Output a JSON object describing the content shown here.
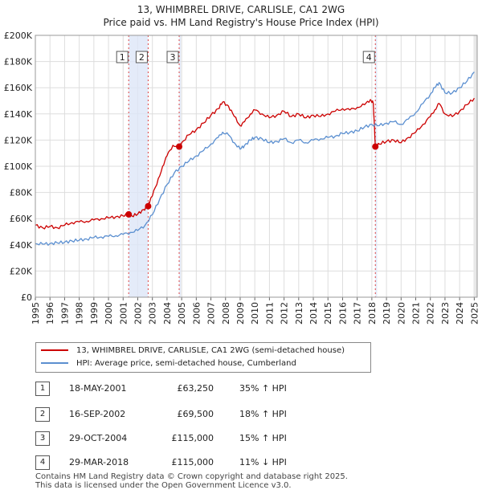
{
  "chart_data": {
    "type": "line",
    "title": "13, WHIMBREL DRIVE, CARLISLE, CA1 2WG",
    "subtitle": "Price paid vs. HM Land Registry's House Price Index (HPI)",
    "xlabel": "",
    "ylabel": "",
    "xlim": [
      1995,
      2025.2
    ],
    "ylim": [
      0,
      200000
    ],
    "y_ticks": [
      0,
      20000,
      40000,
      60000,
      80000,
      100000,
      120000,
      140000,
      160000,
      180000,
      200000
    ],
    "y_tick_labels": [
      "£0",
      "£20K",
      "£40K",
      "£60K",
      "£80K",
      "£100K",
      "£120K",
      "£140K",
      "£160K",
      "£180K",
      "£200K"
    ],
    "x_ticks": [
      1995,
      1996,
      1997,
      1998,
      1999,
      2000,
      2001,
      2002,
      2003,
      2004,
      2005,
      2006,
      2007,
      2008,
      2009,
      2010,
      2011,
      2012,
      2013,
      2014,
      2015,
      2016,
      2017,
      2018,
      2019,
      2020,
      2021,
      2022,
      2023,
      2024,
      2025
    ],
    "x_tick_labels": [
      "1995",
      "1996",
      "1997",
      "1998",
      "1999",
      "2000",
      "2001",
      "2002",
      "2003",
      "2004",
      "2005",
      "2006",
      "2007",
      "2008",
      "2009",
      "2010",
      "2011",
      "2012",
      "2013",
      "2014",
      "2015",
      "2016",
      "2017",
      "2018",
      "2019",
      "2020",
      "2021",
      "2022",
      "2023",
      "2024",
      "2025"
    ],
    "grid": true,
    "legend_position": "bottom",
    "series": [
      {
        "name": "13, WHIMBREL DRIVE, CARLISLE, CA1 2WG (semi-detached house)",
        "color": "#cc0000",
        "x": [
          1995.0,
          1995.5,
          1996.0,
          1996.5,
          1997.0,
          1997.5,
          1998.0,
          1998.5,
          1999.0,
          1999.5,
          2000.0,
          2000.5,
          2001.0,
          2001.38,
          2001.6,
          2002.0,
          2002.4,
          2002.71,
          2002.9,
          2003.3,
          2003.7,
          2004.0,
          2004.4,
          2004.83,
          2005.0,
          2005.5,
          2006.0,
          2006.5,
          2007.0,
          2007.5,
          2007.8,
          2008.2,
          2008.6,
          2009.0,
          2009.3,
          2009.7,
          2010.0,
          2010.5,
          2011.0,
          2011.5,
          2012.0,
          2012.5,
          2013.0,
          2013.5,
          2014.0,
          2014.5,
          2015.0,
          2015.5,
          2016.0,
          2016.5,
          2017.0,
          2017.5,
          2017.9,
          2018.1,
          2018.24,
          2018.5,
          2019.0,
          2019.5,
          2020.0,
          2020.5,
          2021.0,
          2021.5,
          2022.0,
          2022.3,
          2022.6,
          2023.0,
          2023.5,
          2024.0,
          2024.5,
          2025.0
        ],
        "y": [
          55000,
          53000,
          54000,
          53000,
          55000,
          57000,
          57500,
          58000,
          59000,
          60000,
          60500,
          61500,
          62000,
          63250,
          62000,
          63500,
          67000,
          69500,
          76000,
          86000,
          100000,
          108000,
          116000,
          115000,
          118000,
          124000,
          128000,
          133000,
          139000,
          144000,
          149000,
          146000,
          138000,
          131000,
          134000,
          140000,
          143000,
          140000,
          137000,
          139000,
          142000,
          138000,
          140000,
          137000,
          139000,
          138000,
          140000,
          142000,
          144000,
          143000,
          145000,
          147000,
          151000,
          148000,
          115000,
          117000,
          119000,
          120000,
          118000,
          122000,
          126000,
          132000,
          138000,
          143000,
          148000,
          140000,
          138000,
          142000,
          147000,
          152000
        ]
      },
      {
        "name": "HPI: Average price, semi-detached house, Cumberland",
        "color": "#5b8fd0",
        "x": [
          1995.0,
          1995.5,
          1996.0,
          1996.5,
          1997.0,
          1997.5,
          1998.0,
          1998.5,
          1999.0,
          1999.5,
          2000.0,
          2000.5,
          2001.0,
          2001.5,
          2002.0,
          2002.5,
          2003.0,
          2003.5,
          2004.0,
          2004.5,
          2005.0,
          2005.5,
          2006.0,
          2006.5,
          2007.0,
          2007.5,
          2007.8,
          2008.2,
          2008.6,
          2009.0,
          2009.3,
          2009.7,
          2010.0,
          2010.5,
          2011.0,
          2011.5,
          2012.0,
          2012.5,
          2013.0,
          2013.5,
          2014.0,
          2014.5,
          2015.0,
          2015.5,
          2016.0,
          2016.5,
          2017.0,
          2017.5,
          2018.0,
          2018.5,
          2019.0,
          2019.5,
          2020.0,
          2020.5,
          2021.0,
          2021.5,
          2022.0,
          2022.3,
          2022.6,
          2023.0,
          2023.5,
          2024.0,
          2024.5,
          2025.0
        ],
        "y": [
          41000,
          40500,
          41000,
          41500,
          42000,
          43000,
          43500,
          44500,
          45500,
          46000,
          46500,
          47000,
          48000,
          49500,
          51000,
          55000,
          63000,
          75000,
          86000,
          95000,
          100000,
          104000,
          108000,
          112000,
          117000,
          122000,
          126000,
          124000,
          118000,
          113000,
          116000,
          120000,
          122000,
          121000,
          118000,
          119000,
          121000,
          118000,
          120000,
          118000,
          120000,
          121000,
          122000,
          123000,
          125000,
          126000,
          127000,
          130000,
          132000,
          131000,
          133000,
          134000,
          132000,
          136000,
          141000,
          148000,
          155000,
          160000,
          164000,
          156000,
          156000,
          160000,
          165000,
          172000
        ]
      }
    ],
    "sale_markers": [
      {
        "label": "1",
        "x": 2001.38,
        "y": 63250
      },
      {
        "label": "2",
        "x": 2002.71,
        "y": 69500
      },
      {
        "label": "3",
        "x": 2004.83,
        "y": 115000
      },
      {
        "label": "4",
        "x": 2018.24,
        "y": 115000
      }
    ],
    "shaded_spans": [
      [
        2001.38,
        2002.71
      ],
      [
        2004.83,
        2004.95
      ],
      [
        2018.24,
        2018.36
      ]
    ]
  },
  "legend": {
    "property_label": "13, WHIMBREL DRIVE, CARLISLE, CA1 2WG (semi-detached house)",
    "hpi_label": "HPI: Average price, semi-detached house, Cumberland"
  },
  "sales": [
    {
      "num": "1",
      "date": "18-MAY-2001",
      "price": "£63,250",
      "hpi": "35% ↑ HPI"
    },
    {
      "num": "2",
      "date": "16-SEP-2002",
      "price": "£69,500",
      "hpi": "18% ↑ HPI"
    },
    {
      "num": "3",
      "date": "29-OCT-2004",
      "price": "£115,000",
      "hpi": "15% ↑ HPI"
    },
    {
      "num": "4",
      "date": "29-MAR-2018",
      "price": "£115,000",
      "hpi": "11% ↓ HPI"
    }
  ],
  "footer": {
    "line1": "Contains HM Land Registry data © Crown copyright and database right 2025.",
    "line2": "This data is licensed under the Open Government Licence v3.0."
  }
}
